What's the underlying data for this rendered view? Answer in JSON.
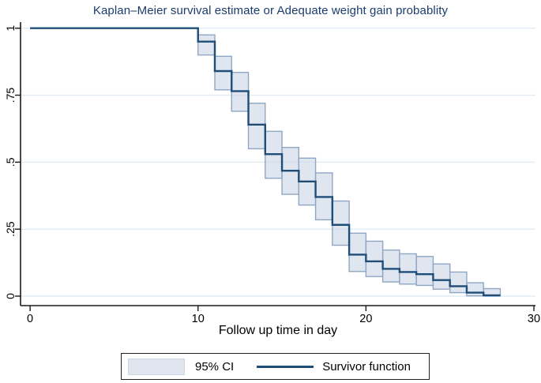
{
  "title": "Kaplan–Meier survival estimate or Adequate weight gain probablity",
  "chart_data": {
    "type": "line",
    "subtype": "kaplan-meier-step",
    "title": "Kaplan–Meier survival estimate or Adequate weight gain probablity",
    "xlabel": "Follow up time in day",
    "ylabel": "",
    "xlim": [
      0,
      30
    ],
    "ylim": [
      0,
      1
    ],
    "grid": true,
    "xticks": [
      {
        "v": 0,
        "label": "0"
      },
      {
        "v": 10,
        "label": "10"
      },
      {
        "v": 20,
        "label": "20"
      },
      {
        "v": 30,
        "label": "30"
      }
    ],
    "yticks": [
      {
        "v": 0,
        "label": "0"
      },
      {
        "v": 0.25,
        "label": ".25"
      },
      {
        "v": 0.5,
        "label": ".5"
      },
      {
        "v": 0.75,
        "label": ".75"
      },
      {
        "v": 1,
        "label": "1"
      }
    ],
    "end_time": 28,
    "steps": [
      {
        "t": 0,
        "s": 1.0,
        "lo": null,
        "hi": null
      },
      {
        "t": 10,
        "s": 0.95,
        "lo": 0.9,
        "hi": 0.975
      },
      {
        "t": 11,
        "s": 0.84,
        "lo": 0.77,
        "hi": 0.895
      },
      {
        "t": 12,
        "s": 0.765,
        "lo": 0.69,
        "hi": 0.835
      },
      {
        "t": 13,
        "s": 0.64,
        "lo": 0.55,
        "hi": 0.72
      },
      {
        "t": 14,
        "s": 0.53,
        "lo": 0.44,
        "hi": 0.615
      },
      {
        "t": 15,
        "s": 0.468,
        "lo": 0.38,
        "hi": 0.555
      },
      {
        "t": 16,
        "s": 0.428,
        "lo": 0.34,
        "hi": 0.515
      },
      {
        "t": 17,
        "s": 0.37,
        "lo": 0.285,
        "hi": 0.46
      },
      {
        "t": 18,
        "s": 0.266,
        "lo": 0.19,
        "hi": 0.355
      },
      {
        "t": 19,
        "s": 0.155,
        "lo": 0.092,
        "hi": 0.235
      },
      {
        "t": 20,
        "s": 0.13,
        "lo": 0.073,
        "hi": 0.205
      },
      {
        "t": 21,
        "s": 0.102,
        "lo": 0.053,
        "hi": 0.172
      },
      {
        "t": 22,
        "s": 0.09,
        "lo": 0.045,
        "hi": 0.158
      },
      {
        "t": 23,
        "s": 0.082,
        "lo": 0.04,
        "hi": 0.148
      },
      {
        "t": 24,
        "s": 0.06,
        "lo": 0.026,
        "hi": 0.12
      },
      {
        "t": 25,
        "s": 0.037,
        "lo": 0.013,
        "hi": 0.09
      },
      {
        "t": 26,
        "s": 0.013,
        "lo": 0.001,
        "hi": 0.05
      },
      {
        "t": 27,
        "s": 0.003,
        "lo": 0.0,
        "hi": 0.028
      }
    ],
    "legend": {
      "position": "bottom",
      "items": [
        {
          "label": "95% CI",
          "type": "area"
        },
        {
          "label": "Survivor function",
          "type": "line"
        }
      ]
    },
    "colors": {
      "line": "#1e4d78",
      "ci_fill": "#ccd5e6",
      "ci_border": "#8fa6c4",
      "grid": "#e3ecf5",
      "title": "#1b3c6e",
      "axis": "#1a1a1a"
    }
  }
}
